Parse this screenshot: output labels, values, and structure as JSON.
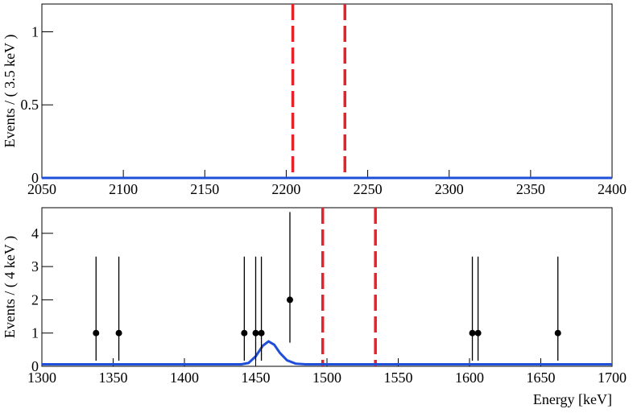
{
  "chart_data": [
    {
      "type": "line",
      "ylabel": "Events / ( 3.5 keV )",
      "xlim": [
        2050,
        2400
      ],
      "ylim": [
        0,
        1.19
      ],
      "xticks": [
        2050,
        2100,
        2150,
        2200,
        2250,
        2300,
        2350,
        2400
      ],
      "yticks": [
        0,
        0.5,
        1
      ],
      "curve": {
        "color": "#1f4fd8",
        "x": [
          2050,
          2400
        ],
        "values": [
          0,
          0
        ]
      },
      "vlines": {
        "color": "#e8222a",
        "values": [
          2204,
          2236
        ]
      }
    },
    {
      "type": "errorbar",
      "ylabel": "Events / ( 4 keV )",
      "xlabel": "Energy [keV]",
      "xlim": [
        1300,
        1700
      ],
      "ylim": [
        0,
        4.77
      ],
      "xticks": [
        1300,
        1350,
        1400,
        1450,
        1500,
        1550,
        1600,
        1650,
        1700
      ],
      "yticks": [
        0,
        1,
        2,
        3,
        4
      ],
      "points": {
        "color": "#000000",
        "x": [
          1338,
          1354,
          1442,
          1450,
          1454,
          1474,
          1602,
          1606,
          1662
        ],
        "values": [
          1,
          1,
          1,
          1,
          1,
          2,
          1,
          1,
          1
        ],
        "yerr_low": [
          0.83,
          0.83,
          0.83,
          0.83,
          0.83,
          1.29,
          0.83,
          0.83,
          0.83
        ],
        "yerr_high": [
          2.3,
          2.3,
          2.3,
          2.3,
          2.3,
          2.64,
          2.3,
          2.3,
          2.3
        ]
      },
      "curve": {
        "color": "#1f4fd8",
        "x": [
          1300,
          1440,
          1445,
          1450,
          1455,
          1459,
          1463,
          1467,
          1472,
          1478,
          1485,
          1700
        ],
        "values": [
          0.06,
          0.06,
          0.1,
          0.3,
          0.62,
          0.75,
          0.65,
          0.4,
          0.18,
          0.08,
          0.06,
          0.06
        ]
      },
      "vlines": {
        "color": "#e8222a",
        "values": [
          1497,
          1534
        ]
      }
    }
  ]
}
